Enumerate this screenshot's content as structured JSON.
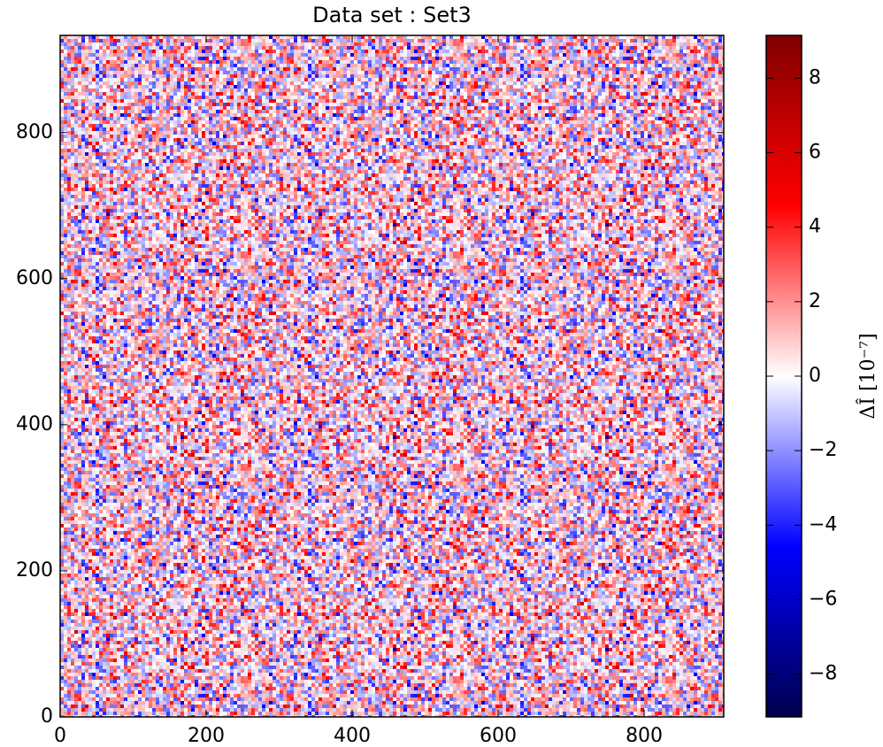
{
  "chart_data": {
    "type": "heatmap",
    "title": "Data set : Set3",
    "xlim": [
      0,
      909
    ],
    "xticks": [
      0,
      200,
      400,
      600,
      800
    ],
    "ylim": [
      0,
      933
    ],
    "yticks": [
      0,
      200,
      400,
      600,
      800
    ],
    "colorbar": {
      "label": "ΔÎ [10⁻⁷]",
      "clim": [
        -9.15,
        9.15
      ],
      "ticks": [
        {
          "value": -8,
          "label": "−8"
        },
        {
          "value": -6,
          "label": "−6"
        },
        {
          "value": -4,
          "label": "−4"
        },
        {
          "value": -2,
          "label": "−2"
        },
        0,
        2,
        4,
        6,
        8
      ],
      "colormap": [
        "#00004d",
        "#0000ff",
        "#ffffff",
        "#ff0000",
        "#800000"
      ]
    }
  }
}
